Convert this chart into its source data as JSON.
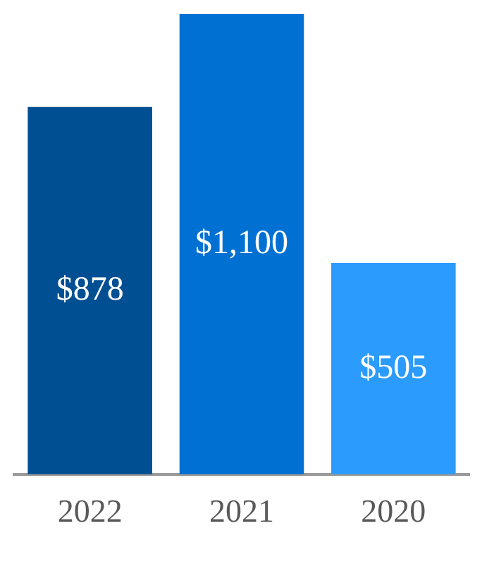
{
  "chart_data": {
    "type": "bar",
    "categories": [
      "2022",
      "2021",
      "2020"
    ],
    "values": [
      878,
      1100,
      505
    ],
    "colors": [
      "#014f93",
      "#0070d2",
      "#2b9bfd"
    ],
    "value_labels": [
      "$878",
      "$1,100",
      "$505"
    ],
    "tick_labels": "x",
    "grid": false,
    "legend": false
  }
}
